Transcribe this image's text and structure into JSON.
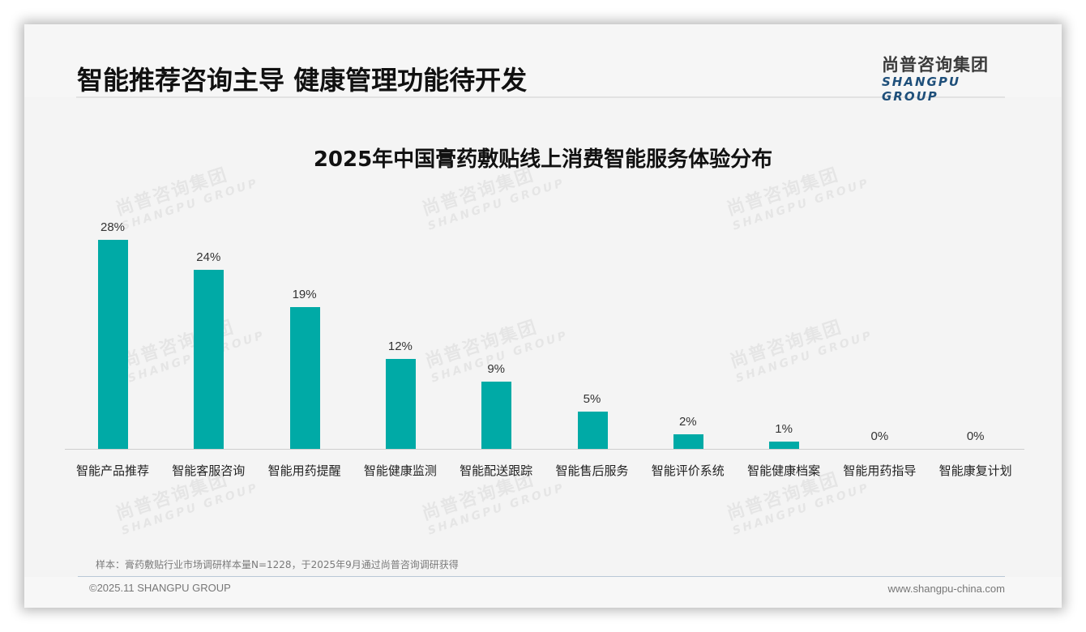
{
  "header": {
    "title": "智能推荐咨询主导 健康管理功能待开发",
    "logo_cn": "尚普咨询集团",
    "logo_en": "SHANGPU GROUP"
  },
  "watermark": {
    "cn": "尚普咨询集团",
    "en": "SHANGPU GROUP"
  },
  "colors": {
    "bar": "#00aaa6",
    "logo_en": "#1e4f7a"
  },
  "chart_data": {
    "type": "bar",
    "title": "2025年中国膏药敷贴线上消费智能服务体验分布",
    "categories": [
      "智能产品推荐",
      "智能客服咨询",
      "智能用药提醒",
      "智能健康监测",
      "智能配送跟踪",
      "智能售后服务",
      "智能评价系统",
      "智能健康档案",
      "智能用药指导",
      "智能康复计划"
    ],
    "values": [
      28,
      24,
      19,
      12,
      9,
      5,
      2,
      1,
      0,
      0
    ],
    "value_labels": [
      "28%",
      "24%",
      "19%",
      "12%",
      "9%",
      "5%",
      "2%",
      "1%",
      "0%",
      "0%"
    ],
    "xlabel": "",
    "ylabel": "",
    "ylim": [
      0,
      30
    ],
    "grid": false,
    "legend": "none",
    "unit": "%"
  },
  "footer": {
    "note": "样本：膏药敷贴行业市场调研样本量N=1228，于2025年9月通过尚普咨询调研获得",
    "copyright": "©2025.11 SHANGPU GROUP",
    "website": "www.shangpu-china.com"
  }
}
